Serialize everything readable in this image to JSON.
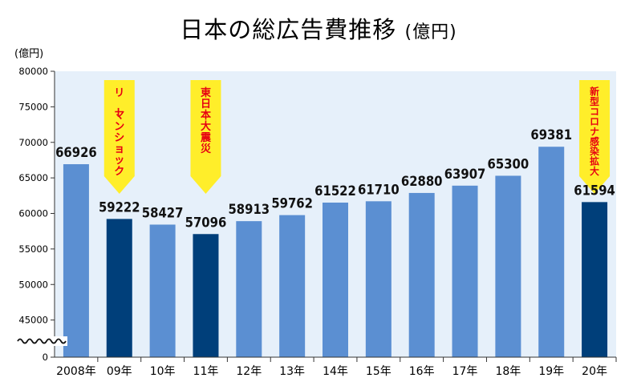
{
  "chart_data": {
    "type": "bar",
    "title": "日本の総広告費推移",
    "title_unit": "(億円)",
    "ylabel": "(億円)",
    "xlabel": "",
    "ylim": [
      40000,
      80000
    ],
    "axis_zero_label": "0",
    "yticks": [
      45000,
      50000,
      55000,
      60000,
      65000,
      70000,
      75000,
      80000
    ],
    "grid": false,
    "categories": [
      "2008年",
      "09年",
      "10年",
      "11年",
      "12年",
      "13年",
      "14年",
      "15年",
      "16年",
      "17年",
      "18年",
      "19年",
      "20年"
    ],
    "values": [
      66926,
      59222,
      58427,
      57096,
      58913,
      59762,
      61522,
      61710,
      62880,
      63907,
      65300,
      69381,
      61594
    ],
    "colors": {
      "normal": "#5b8fd2",
      "highlight": "#003f7a",
      "plot_bg": "#e6f0fa",
      "callout_bg": "#ffee2a",
      "callout_text": "#e60012"
    },
    "highlighted_categories": [
      "09年",
      "11年",
      "20年"
    ],
    "annotations": [
      {
        "category": "09年",
        "text": "リーマンショック"
      },
      {
        "category": "11年",
        "text": "東日本大震災"
      },
      {
        "category": "20年",
        "text": "新型コロナ感染拡大"
      }
    ],
    "axis_break": true
  }
}
